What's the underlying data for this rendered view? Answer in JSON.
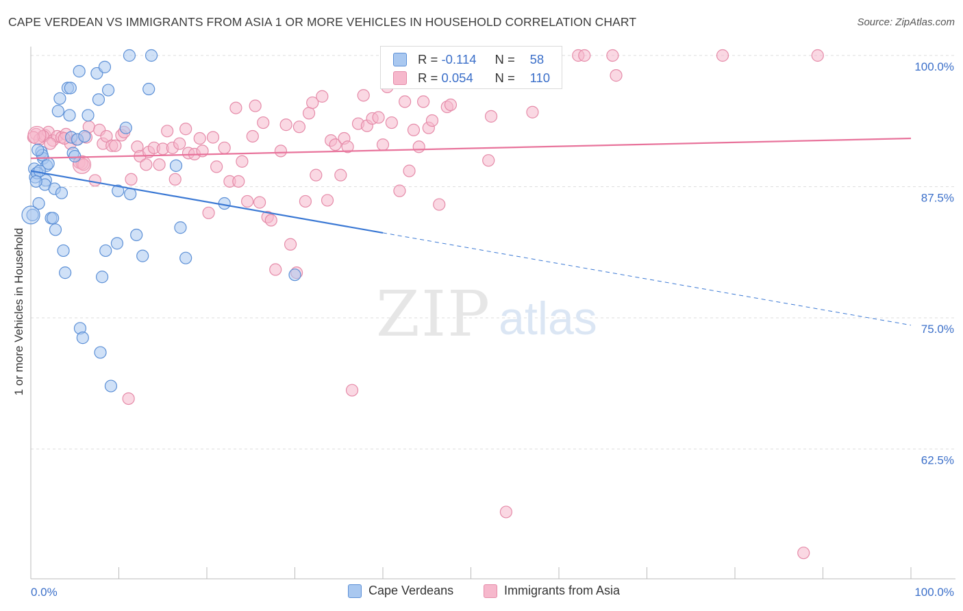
{
  "header": {
    "title": "CAPE VERDEAN VS IMMIGRANTS FROM ASIA 1 OR MORE VEHICLES IN HOUSEHOLD CORRELATION CHART",
    "source": "Source: ZipAtlas.com"
  },
  "watermark": {
    "zip": "ZIP",
    "atlas": "atlas"
  },
  "colors": {
    "blue_fill": "#a9c8f0",
    "blue_stroke": "#5b8fd6",
    "blue_line": "#3a78d4",
    "pink_fill": "#f6b8cc",
    "pink_stroke": "#e58aa8",
    "pink_line": "#e8739b",
    "tick_label": "#3b6fc9",
    "grid": "#dddddd"
  },
  "stats": {
    "series1": {
      "r_label": "R =",
      "r_value": "-0.114",
      "n_label": "N =",
      "n_value": "58"
    },
    "series2": {
      "r_label": "R =",
      "r_value": "0.054",
      "n_label": "N =",
      "n_value": "110"
    }
  },
  "legend": {
    "items": [
      {
        "label": "Cape Verdeans"
      },
      {
        "label": "Immigrants from Asia"
      }
    ]
  },
  "chart_data": {
    "type": "scatter",
    "title": "CAPE VERDEAN VS IMMIGRANTS FROM ASIA 1 OR MORE VEHICLES IN HOUSEHOLD CORRELATION CHART",
    "xlabel": "",
    "ylabel": "1 or more Vehicles in Household",
    "xlim": [
      0,
      100
    ],
    "ylim": [
      50,
      100.5
    ],
    "x_tick_labels": [
      "0.0%",
      "100.0%"
    ],
    "y_ticks": [
      62.5,
      75.0,
      87.5,
      100.0
    ],
    "y_tick_labels": [
      "62.5%",
      "75.0%",
      "87.5%",
      "100.0%"
    ],
    "grid": true,
    "legend_position": "bottom",
    "series": [
      {
        "name": "Cape Verdeans",
        "color": "#a9c8f0",
        "trend": {
          "x": [
            0,
            40
          ],
          "y": [
            89.0,
            83.1
          ],
          "dashed_to": [
            100,
            74.3
          ]
        },
        "points": [
          [
            0.4,
            89.2
          ],
          [
            0.5,
            88.4
          ],
          [
            0.7,
            88.8
          ],
          [
            0.9,
            85.9
          ],
          [
            1.2,
            90.8
          ],
          [
            1.4,
            90.2
          ],
          [
            1.8,
            89.5
          ],
          [
            1.7,
            88.1
          ],
          [
            1.6,
            87.7
          ],
          [
            2.0,
            89.7
          ],
          [
            2.3,
            84.5
          ],
          [
            2.5,
            84.5
          ],
          [
            2.8,
            83.4
          ],
          [
            2.7,
            87.3
          ],
          [
            3.1,
            94.7
          ],
          [
            3.3,
            95.9
          ],
          [
            3.5,
            86.9
          ],
          [
            3.7,
            81.4
          ],
          [
            3.9,
            79.3
          ],
          [
            4.2,
            96.9
          ],
          [
            4.4,
            94.3
          ],
          [
            4.5,
            96.9
          ],
          [
            4.6,
            92.2
          ],
          [
            4.8,
            90.7
          ],
          [
            5.0,
            90.4
          ],
          [
            5.3,
            92.0
          ],
          [
            5.5,
            98.5
          ],
          [
            5.6,
            74.0
          ],
          [
            5.9,
            73.1
          ],
          [
            6.1,
            92.3
          ],
          [
            6.5,
            94.3
          ],
          [
            7.5,
            98.3
          ],
          [
            7.7,
            95.8
          ],
          [
            7.9,
            71.7
          ],
          [
            8.1,
            78.9
          ],
          [
            8.4,
            98.9
          ],
          [
            8.5,
            81.4
          ],
          [
            8.8,
            96.7
          ],
          [
            9.1,
            68.5
          ],
          [
            9.8,
            82.1
          ],
          [
            9.9,
            87.1
          ],
          [
            10.8,
            93.1
          ],
          [
            11.3,
            86.8
          ],
          [
            11.2,
            100.0
          ],
          [
            12.0,
            82.9
          ],
          [
            12.7,
            80.9
          ],
          [
            13.4,
            96.8
          ],
          [
            13.7,
            100.0
          ],
          [
            16.5,
            89.5
          ],
          [
            17.0,
            83.6
          ],
          [
            17.6,
            80.7
          ],
          [
            22.0,
            85.9
          ],
          [
            30.0,
            79.1
          ],
          [
            1.0,
            89.0
          ],
          [
            1.3,
            90.5
          ],
          [
            0.8,
            91.0
          ],
          [
            0.2,
            84.8
          ],
          [
            0.6,
            88.0
          ]
        ]
      },
      {
        "name": "Immigrants from Asia",
        "color": "#f6b8cc",
        "trend": {
          "x": [
            0,
            100
          ],
          "y": [
            90.2,
            92.1
          ]
        },
        "points": [
          [
            0.6,
            92.5
          ],
          [
            1.0,
            92.0
          ],
          [
            1.6,
            92.4
          ],
          [
            2.0,
            92.7
          ],
          [
            2.5,
            91.9
          ],
          [
            3.0,
            92.3
          ],
          [
            3.5,
            92.2
          ],
          [
            4.0,
            92.5
          ],
          [
            4.5,
            91.6
          ],
          [
            5.2,
            92.0
          ],
          [
            5.5,
            89.8
          ],
          [
            5.8,
            89.7
          ],
          [
            6.3,
            92.2
          ],
          [
            6.6,
            93.2
          ],
          [
            7.3,
            88.1
          ],
          [
            7.8,
            92.9
          ],
          [
            8.2,
            91.6
          ],
          [
            8.6,
            92.3
          ],
          [
            9.2,
            91.4
          ],
          [
            9.6,
            91.4
          ],
          [
            10.3,
            92.4
          ],
          [
            10.6,
            92.7
          ],
          [
            11.1,
            67.3
          ],
          [
            11.4,
            88.2
          ],
          [
            12.1,
            91.3
          ],
          [
            12.4,
            90.4
          ],
          [
            13.1,
            89.6
          ],
          [
            13.4,
            90.8
          ],
          [
            14.0,
            91.2
          ],
          [
            14.6,
            89.6
          ],
          [
            15.0,
            91.1
          ],
          [
            15.5,
            92.8
          ],
          [
            16.1,
            91.2
          ],
          [
            16.4,
            88.2
          ],
          [
            16.9,
            91.6
          ],
          [
            17.6,
            93.0
          ],
          [
            17.9,
            90.7
          ],
          [
            18.6,
            90.6
          ],
          [
            19.2,
            92.1
          ],
          [
            19.5,
            90.9
          ],
          [
            20.2,
            85.0
          ],
          [
            20.7,
            92.2
          ],
          [
            21.1,
            89.4
          ],
          [
            22.0,
            91.2
          ],
          [
            22.6,
            88.0
          ],
          [
            23.3,
            95.0
          ],
          [
            23.6,
            88.0
          ],
          [
            24.0,
            89.9
          ],
          [
            24.6,
            86.1
          ],
          [
            25.2,
            92.3
          ],
          [
            25.5,
            95.2
          ],
          [
            26.0,
            86.0
          ],
          [
            26.4,
            93.6
          ],
          [
            26.9,
            84.6
          ],
          [
            27.3,
            84.3
          ],
          [
            27.8,
            79.6
          ],
          [
            28.4,
            90.9
          ],
          [
            29.0,
            93.4
          ],
          [
            29.5,
            82.0
          ],
          [
            30.2,
            79.3
          ],
          [
            30.5,
            93.2
          ],
          [
            31.2,
            86.1
          ],
          [
            31.6,
            94.5
          ],
          [
            32.0,
            95.5
          ],
          [
            32.4,
            88.6
          ],
          [
            33.1,
            96.1
          ],
          [
            33.7,
            86.2
          ],
          [
            34.1,
            91.9
          ],
          [
            34.6,
            91.5
          ],
          [
            35.2,
            88.6
          ],
          [
            35.6,
            92.1
          ],
          [
            36.0,
            91.3
          ],
          [
            36.5,
            68.1
          ],
          [
            37.2,
            93.5
          ],
          [
            37.8,
            96.2
          ],
          [
            38.2,
            93.3
          ],
          [
            38.8,
            94.0
          ],
          [
            39.5,
            94.1
          ],
          [
            40.0,
            91.5
          ],
          [
            40.5,
            97.0
          ],
          [
            41.0,
            93.6
          ],
          [
            41.9,
            87.1
          ],
          [
            42.5,
            95.6
          ],
          [
            43.0,
            89.0
          ],
          [
            43.5,
            92.9
          ],
          [
            44.1,
            91.3
          ],
          [
            44.6,
            95.6
          ],
          [
            45.2,
            93.1
          ],
          [
            45.6,
            93.8
          ],
          [
            46.4,
            85.8
          ],
          [
            47.3,
            95.1
          ],
          [
            47.7,
            95.3
          ],
          [
            52.0,
            90.0
          ],
          [
            52.3,
            94.2
          ],
          [
            53.6,
            100.0
          ],
          [
            54.0,
            56.5
          ],
          [
            57.0,
            94.6
          ],
          [
            59.4,
            100.0
          ],
          [
            62.2,
            100.0
          ],
          [
            62.9,
            100.0
          ],
          [
            66.1,
            100.0
          ],
          [
            66.5,
            98.1
          ],
          [
            78.6,
            100.0
          ],
          [
            87.8,
            52.6
          ],
          [
            89.4,
            100.0
          ],
          [
            1.4,
            92.3
          ],
          [
            2.2,
            91.6
          ],
          [
            3.8,
            92.1
          ],
          [
            0.3,
            92.2
          ],
          [
            6.0,
            89.6
          ]
        ]
      }
    ]
  }
}
